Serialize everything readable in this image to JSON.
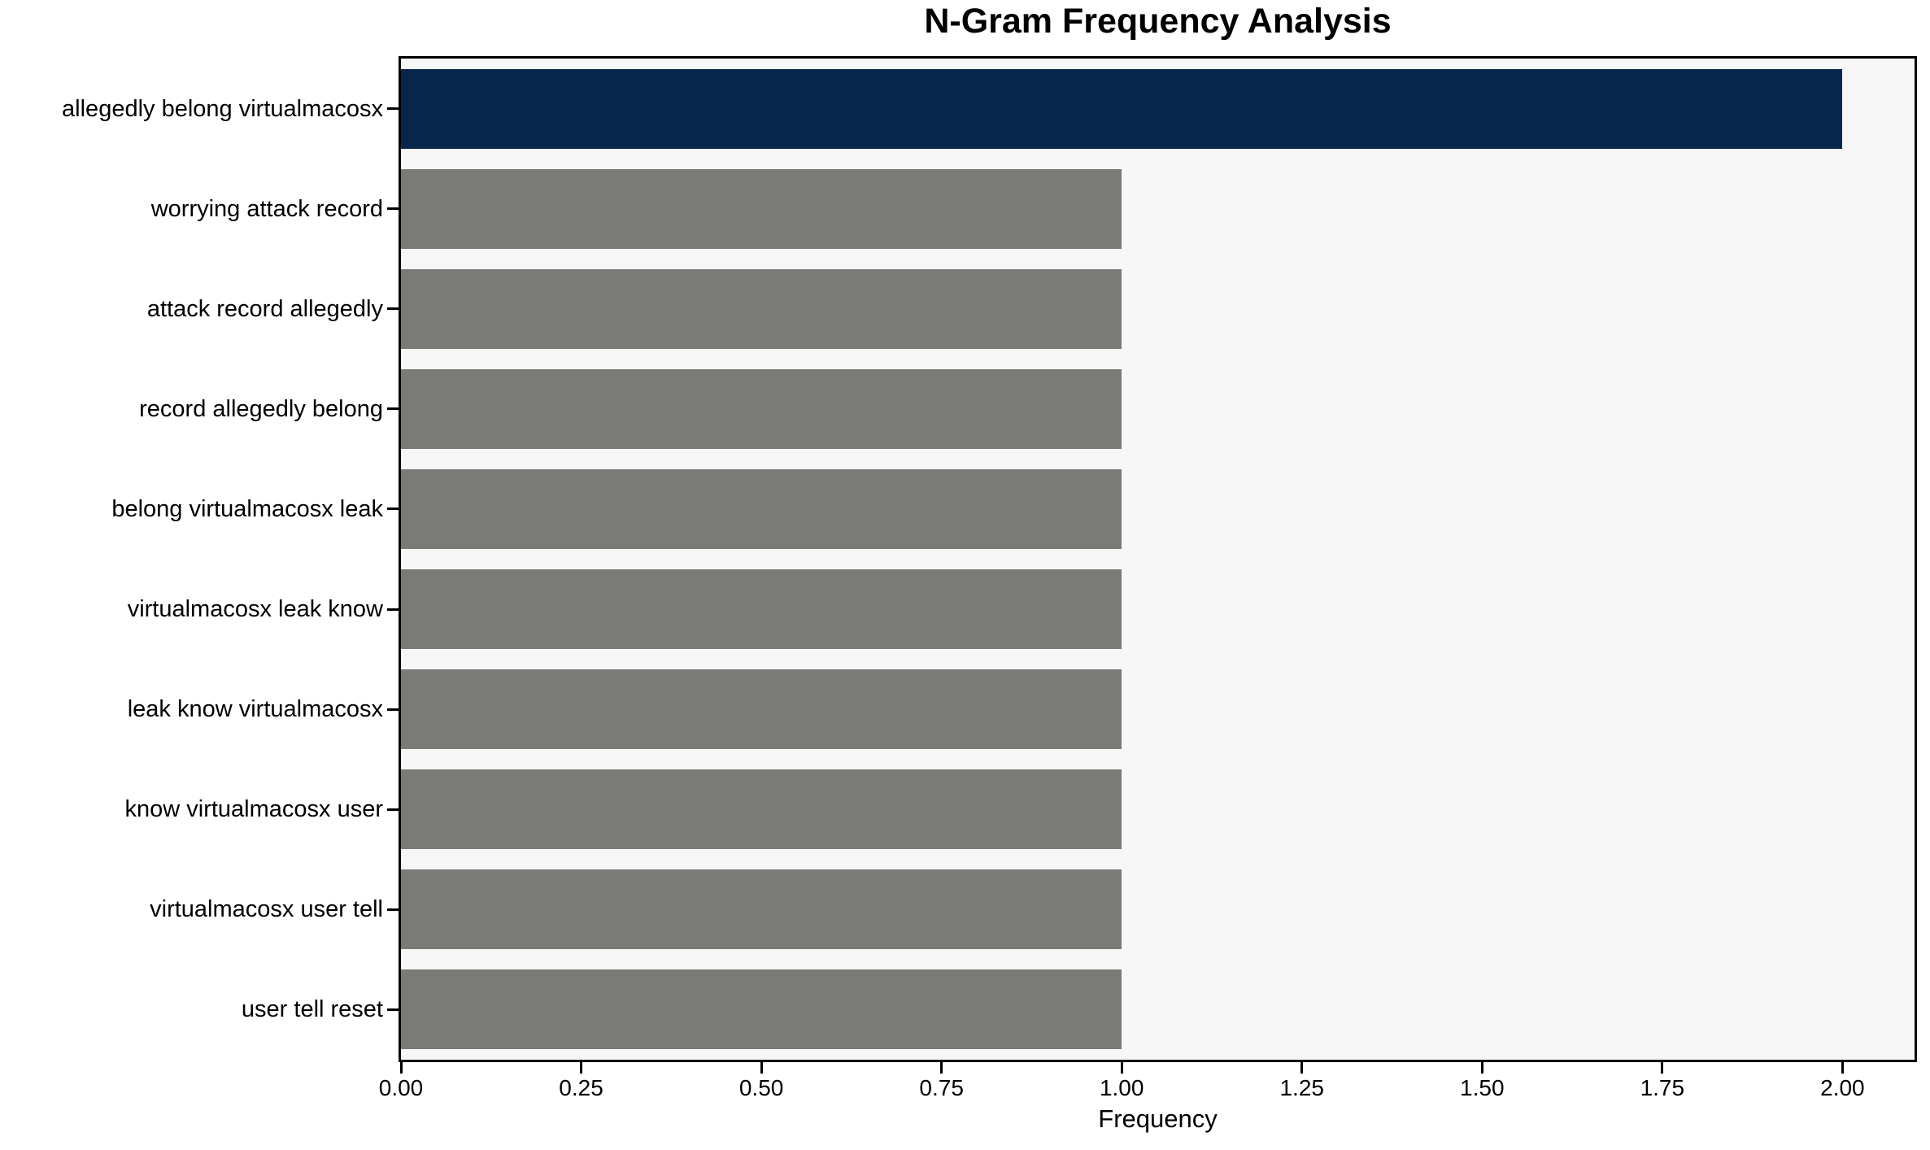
{
  "figure": {
    "background": "#ffffff"
  },
  "chart_data": {
    "type": "bar",
    "orientation": "horizontal",
    "title": "N-Gram Frequency Analysis",
    "xlabel": "Frequency",
    "ylabel": "",
    "categories": [
      "allegedly belong virtualmacosx",
      "worrying attack record",
      "attack record allegedly",
      "record allegedly belong",
      "belong virtualmacosx leak",
      "virtualmacosx leak know",
      "leak know virtualmacosx",
      "know virtualmacosx user",
      "virtualmacosx user tell",
      "user tell reset"
    ],
    "values": [
      2,
      1,
      1,
      1,
      1,
      1,
      1,
      1,
      1,
      1
    ],
    "xlim": [
      0,
      2.1
    ],
    "xticks": [
      0,
      0.25,
      0.5,
      0.75,
      1.0,
      1.25,
      1.5,
      1.75,
      2.0
    ],
    "xtick_labels": [
      "0.00",
      "0.25",
      "0.50",
      "0.75",
      "1.00",
      "1.25",
      "1.50",
      "1.75",
      "2.00"
    ],
    "grid": false,
    "legend": null,
    "colors": {
      "bar_highlight": "#08254b",
      "bar_default": "#7a7a77",
      "plot_background": "#f6f6f6",
      "axis": "#000000",
      "text": "#000000"
    },
    "bar_colors": [
      "#08254b",
      "#7a7a77",
      "#7a7a77",
      "#7a7a77",
      "#7a7a77",
      "#7a7a77",
      "#7a7a77",
      "#7a7a77",
      "#7a7a77",
      "#7a7a77"
    ]
  }
}
